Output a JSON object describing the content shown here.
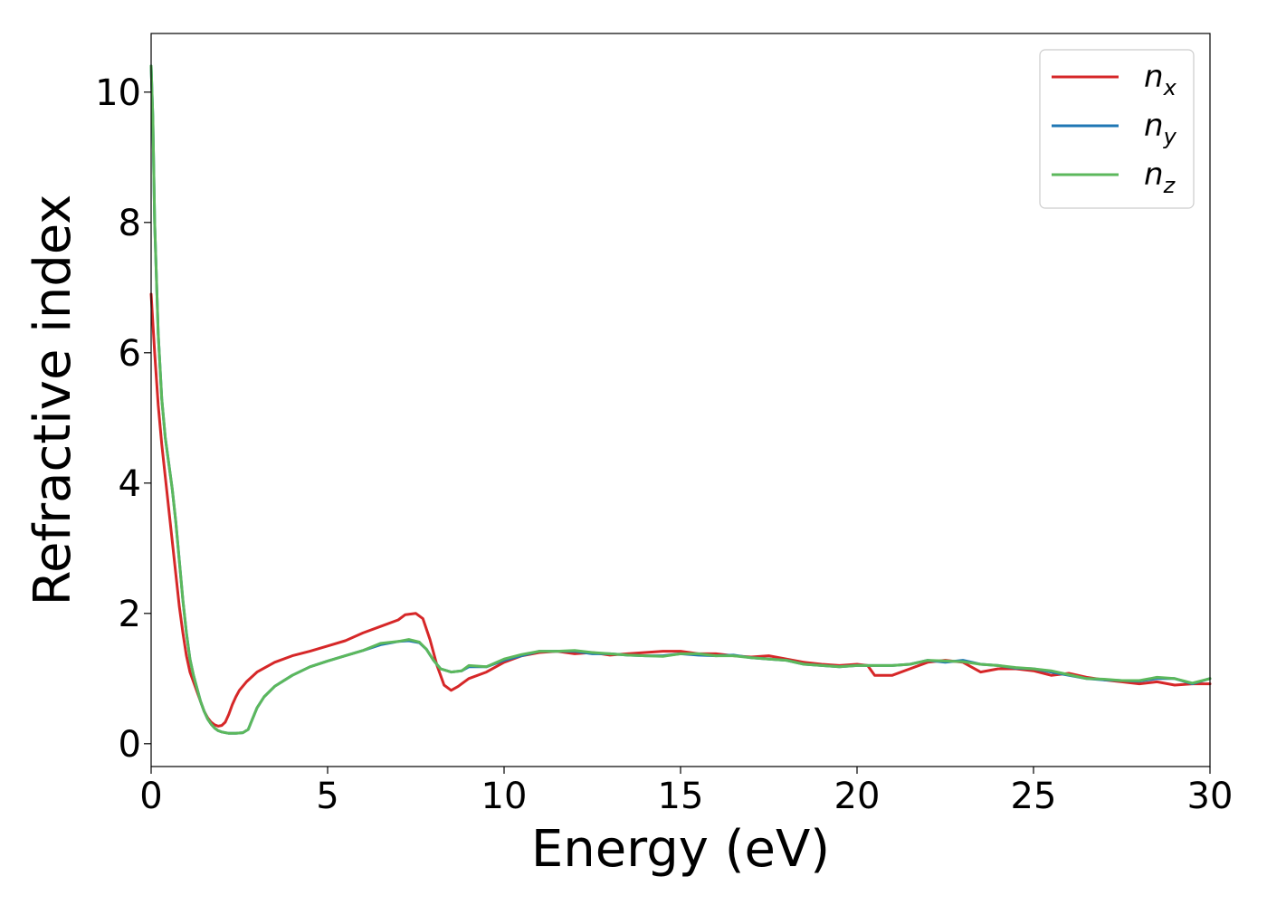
{
  "chart_data": {
    "type": "line",
    "xlabel": "Energy (eV)",
    "ylabel": "Refractive index",
    "xlim": [
      0,
      30
    ],
    "ylim": [
      -0.35,
      10.9
    ],
    "xticks": [
      0,
      5,
      10,
      15,
      20,
      25,
      30
    ],
    "yticks": [
      0,
      2,
      4,
      6,
      8,
      10
    ],
    "grid": false,
    "legend": "top-right",
    "series": [
      {
        "name": "n_x",
        "label_main": "n",
        "label_sub": "x",
        "color": "#d62728",
        "x": [
          0,
          0.1,
          0.2,
          0.3,
          0.4,
          0.5,
          0.6,
          0.7,
          0.8,
          0.9,
          1.0,
          1.1,
          1.2,
          1.3,
          1.4,
          1.5,
          1.6,
          1.7,
          1.8,
          1.9,
          2.0,
          2.1,
          2.2,
          2.3,
          2.4,
          2.5,
          2.7,
          3.0,
          3.5,
          4.0,
          4.5,
          5.0,
          5.5,
          6.0,
          6.5,
          7.0,
          7.2,
          7.5,
          7.7,
          7.9,
          8.1,
          8.3,
          8.5,
          8.7,
          9.0,
          9.5,
          10.0,
          10.5,
          11.0,
          11.5,
          12.0,
          12.5,
          13.0,
          13.5,
          14.0,
          14.5,
          15.0,
          15.5,
          16.0,
          16.5,
          17.0,
          17.5,
          18.0,
          18.5,
          19.0,
          19.5,
          20.0,
          20.3,
          20.5,
          21.0,
          21.5,
          22.0,
          22.5,
          23.0,
          23.5,
          24.0,
          24.5,
          25.0,
          25.5,
          26.0,
          26.5,
          27.0,
          27.5,
          28.0,
          28.5,
          29.0,
          29.5,
          30.0
        ],
        "y": [
          6.9,
          6.0,
          5.2,
          4.6,
          4.1,
          3.6,
          3.1,
          2.6,
          2.1,
          1.7,
          1.35,
          1.1,
          0.95,
          0.8,
          0.65,
          0.5,
          0.4,
          0.33,
          0.29,
          0.27,
          0.28,
          0.33,
          0.45,
          0.6,
          0.72,
          0.82,
          0.95,
          1.1,
          1.25,
          1.35,
          1.42,
          1.5,
          1.58,
          1.7,
          1.8,
          1.9,
          1.98,
          2.0,
          1.92,
          1.6,
          1.2,
          0.9,
          0.82,
          0.88,
          1.0,
          1.1,
          1.25,
          1.35,
          1.4,
          1.42,
          1.38,
          1.4,
          1.36,
          1.38,
          1.4,
          1.42,
          1.42,
          1.38,
          1.38,
          1.35,
          1.33,
          1.35,
          1.3,
          1.25,
          1.22,
          1.2,
          1.22,
          1.2,
          1.05,
          1.05,
          1.15,
          1.25,
          1.28,
          1.25,
          1.1,
          1.15,
          1.15,
          1.12,
          1.05,
          1.08,
          1.02,
          0.98,
          0.95,
          0.92,
          0.95,
          0.9,
          0.92,
          0.92
        ]
      },
      {
        "name": "n_y",
        "label_main": "n",
        "label_sub": "y",
        "color": "#1f77b4",
        "x": [
          0,
          0.05,
          0.1,
          0.2,
          0.3,
          0.4,
          0.5,
          0.6,
          0.7,
          0.8,
          0.9,
          1.0,
          1.1,
          1.2,
          1.3,
          1.4,
          1.5,
          1.6,
          1.7,
          1.8,
          1.9,
          2.0,
          2.2,
          2.4,
          2.6,
          2.75,
          2.85,
          3.0,
          3.2,
          3.5,
          4.0,
          4.5,
          5.0,
          5.5,
          6.0,
          6.5,
          7.0,
          7.3,
          7.6,
          7.8,
          8.0,
          8.2,
          8.5,
          8.8,
          9.0,
          9.5,
          10.0,
          10.5,
          11.0,
          11.5,
          12.0,
          12.5,
          13.0,
          13.5,
          14.0,
          14.5,
          15.0,
          15.5,
          16.0,
          16.5,
          17.0,
          17.5,
          18.0,
          18.5,
          19.0,
          19.5,
          20.0,
          20.5,
          21.0,
          21.5,
          22.0,
          22.5,
          23.0,
          23.5,
          24.0,
          24.5,
          25.0,
          25.5,
          26.0,
          26.5,
          27.0,
          27.5,
          28.0,
          28.5,
          29.0,
          29.5,
          30.0
        ],
        "y": [
          10.4,
          9.6,
          8.0,
          6.3,
          5.3,
          4.7,
          4.3,
          3.9,
          3.4,
          2.8,
          2.2,
          1.7,
          1.3,
          1.05,
          0.85,
          0.65,
          0.5,
          0.38,
          0.3,
          0.24,
          0.2,
          0.18,
          0.16,
          0.16,
          0.17,
          0.22,
          0.35,
          0.55,
          0.72,
          0.88,
          1.05,
          1.18,
          1.27,
          1.35,
          1.43,
          1.52,
          1.57,
          1.58,
          1.55,
          1.45,
          1.28,
          1.15,
          1.1,
          1.12,
          1.18,
          1.18,
          1.28,
          1.35,
          1.42,
          1.42,
          1.42,
          1.38,
          1.38,
          1.36,
          1.35,
          1.35,
          1.38,
          1.36,
          1.35,
          1.36,
          1.32,
          1.3,
          1.28,
          1.22,
          1.2,
          1.18,
          1.2,
          1.2,
          1.2,
          1.22,
          1.28,
          1.25,
          1.28,
          1.22,
          1.2,
          1.16,
          1.15,
          1.1,
          1.05,
          1.0,
          0.98,
          0.97,
          0.96,
          1.0,
          1.0,
          0.92,
          1.0
        ]
      },
      {
        "name": "n_z",
        "label_main": "n",
        "label_sub": "z",
        "color": "#5cb85c",
        "x": [
          0,
          0.05,
          0.1,
          0.2,
          0.3,
          0.4,
          0.5,
          0.6,
          0.7,
          0.8,
          0.9,
          1.0,
          1.1,
          1.2,
          1.3,
          1.4,
          1.5,
          1.6,
          1.7,
          1.8,
          1.9,
          2.0,
          2.2,
          2.4,
          2.6,
          2.75,
          2.85,
          3.0,
          3.2,
          3.5,
          4.0,
          4.5,
          5.0,
          5.5,
          6.0,
          6.5,
          7.0,
          7.3,
          7.6,
          7.8,
          8.0,
          8.2,
          8.5,
          8.8,
          9.0,
          9.5,
          10.0,
          10.5,
          11.0,
          11.5,
          12.0,
          12.5,
          13.0,
          13.5,
          14.0,
          14.5,
          15.0,
          15.5,
          16.0,
          16.5,
          17.0,
          17.5,
          18.0,
          18.5,
          19.0,
          19.5,
          20.0,
          20.5,
          21.0,
          21.5,
          22.0,
          22.5,
          23.0,
          23.5,
          24.0,
          24.5,
          25.0,
          25.5,
          26.0,
          26.5,
          27.0,
          27.5,
          28.0,
          28.5,
          29.0,
          29.5,
          30.0
        ],
        "y": [
          10.4,
          9.6,
          8.0,
          6.3,
          5.3,
          4.7,
          4.3,
          3.9,
          3.4,
          2.8,
          2.2,
          1.7,
          1.3,
          1.05,
          0.85,
          0.65,
          0.5,
          0.38,
          0.3,
          0.24,
          0.2,
          0.18,
          0.16,
          0.16,
          0.17,
          0.22,
          0.35,
          0.55,
          0.72,
          0.88,
          1.05,
          1.18,
          1.27,
          1.35,
          1.43,
          1.54,
          1.57,
          1.6,
          1.56,
          1.45,
          1.28,
          1.15,
          1.1,
          1.12,
          1.2,
          1.18,
          1.3,
          1.37,
          1.42,
          1.42,
          1.43,
          1.4,
          1.38,
          1.36,
          1.35,
          1.34,
          1.38,
          1.38,
          1.35,
          1.35,
          1.32,
          1.3,
          1.28,
          1.22,
          1.2,
          1.18,
          1.2,
          1.2,
          1.2,
          1.22,
          1.28,
          1.27,
          1.26,
          1.22,
          1.2,
          1.17,
          1.15,
          1.12,
          1.06,
          1.0,
          0.99,
          0.97,
          0.97,
          1.02,
          1.0,
          0.93,
          1.0
        ]
      }
    ]
  }
}
